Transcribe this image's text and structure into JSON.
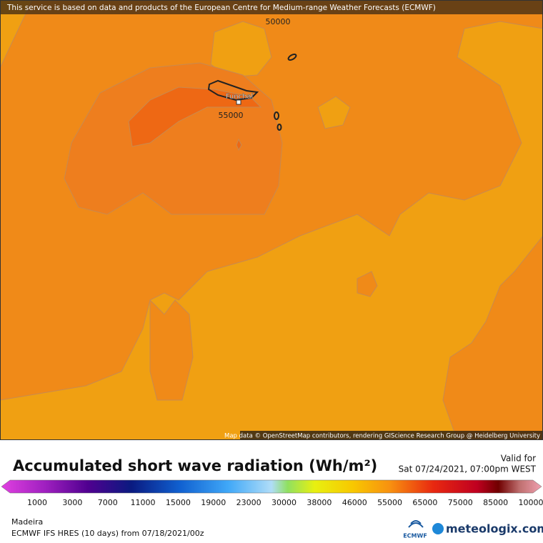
{
  "banner": "This service is based on data and products of the European Centre for Medium-range Weather Forecasts (ECMWF)",
  "map": {
    "place": "Funchal",
    "contour_labels": [
      "50000",
      "55000"
    ],
    "attribution": "Map data © OpenStreetMap contributors, rendering GIScience Research Group @ Heidelberg University"
  },
  "legend": {
    "title": "Accumulated short wave radiation (Wh/m²)",
    "valid_label": "Valid for",
    "valid_time": "Sat 07/24/2021, 07:00pm WEST",
    "ticks": [
      "1000",
      "3000",
      "7000",
      "11000",
      "15000",
      "19000",
      "23000",
      "30000",
      "38000",
      "46000",
      "55000",
      "65000",
      "75000",
      "85000",
      "10000"
    ]
  },
  "footer": {
    "region": "Madeira",
    "model": "ECMWF IFS HRES (10 days) from 07/18/2021/00z",
    "ecmwf_logo": "ECMWF",
    "brand": "meteologix.com"
  }
}
